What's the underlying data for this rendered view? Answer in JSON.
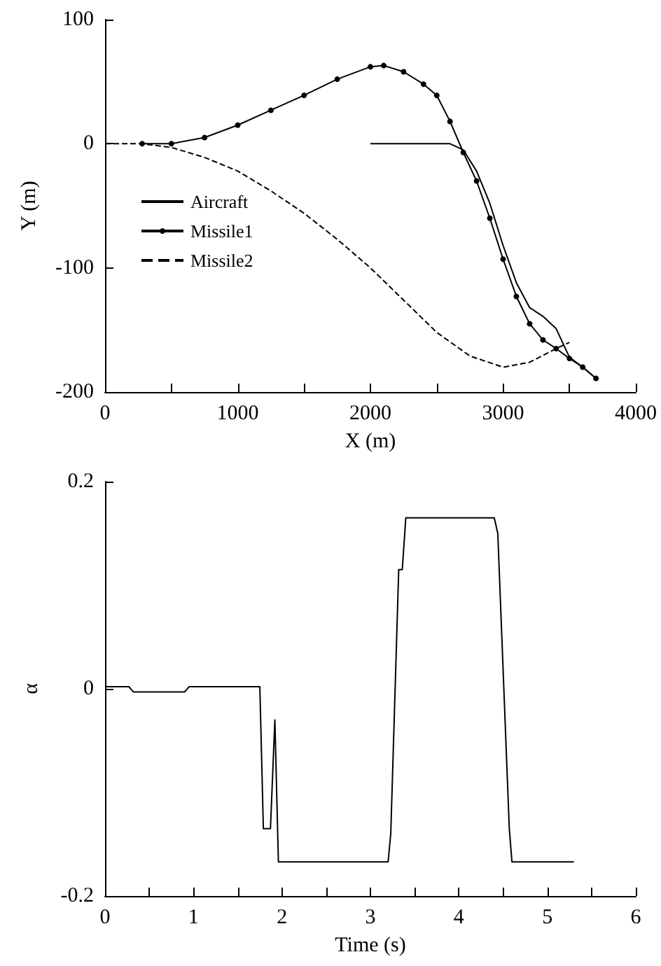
{
  "chart_data": [
    {
      "type": "line",
      "xlabel": "X (m)",
      "ylabel": "Y (m)",
      "xlim": [
        0,
        4000
      ],
      "ylim": [
        -200,
        100
      ],
      "xticks": [
        0,
        {
          "value": 500,
          "label": null
        },
        1000,
        {
          "value": 1500,
          "label": null
        },
        2000,
        {
          "value": 2500,
          "label": null
        },
        3000,
        {
          "value": 3500,
          "label": null
        },
        4000
      ],
      "yticks": [
        -200,
        -100,
        0,
        100
      ],
      "grid": false,
      "legend": "left",
      "series": [
        {
          "name": "Aircraft",
          "color": "#000000",
          "line_style": "solid",
          "marker": "none",
          "x": [
            2000,
            2300,
            2600,
            2700,
            2800,
            2900,
            3000,
            3100,
            3200,
            3300,
            3400,
            3500,
            3600,
            3700
          ],
          "values": [
            0,
            0,
            0,
            -5,
            -22,
            -48,
            -82,
            -112,
            -132,
            -139,
            -149,
            -172,
            -180,
            -189
          ]
        },
        {
          "name": "Missile1",
          "color": "#000000",
          "line_style": "solid",
          "marker": "circle",
          "x": [
            280,
            500,
            750,
            1000,
            1250,
            1500,
            1750,
            2000,
            2100,
            2250,
            2400,
            2500,
            2600,
            2700,
            2800,
            2900,
            3000,
            3100,
            3200,
            3300,
            3400,
            3500,
            3600,
            3700
          ],
          "values": [
            0,
            0,
            5,
            15,
            27,
            39,
            52,
            62,
            63,
            58,
            48,
            39,
            18,
            -7,
            -30,
            -60,
            -93,
            -123,
            -145,
            -158,
            -165,
            -173,
            -180,
            -189
          ]
        },
        {
          "name": "Missile2",
          "color": "#000000",
          "line_style": "dashed",
          "marker": "none",
          "x": [
            0,
            280,
            500,
            750,
            1000,
            1250,
            1500,
            1750,
            2000,
            2250,
            2500,
            2750,
            3000,
            3200,
            3400,
            3500
          ],
          "values": [
            0,
            0,
            -3,
            -11,
            -22,
            -38,
            -56,
            -77,
            -100,
            -126,
            -152,
            -171,
            -180,
            -176,
            -165,
            -160
          ]
        }
      ]
    },
    {
      "type": "line",
      "xlabel": "Time (s)",
      "ylabel": "α",
      "xlim": [
        0,
        6
      ],
      "ylim": [
        -0.2,
        0.2
      ],
      "xticks": [
        0,
        {
          "value": 0.5,
          "label": null
        },
        1,
        {
          "value": 1.5,
          "label": null
        },
        2,
        {
          "value": 2.5,
          "label": null
        },
        3,
        {
          "value": 3.5,
          "label": null
        },
        4,
        {
          "value": 4.5,
          "label": null
        },
        5,
        {
          "value": 5.5,
          "label": null
        },
        6
      ],
      "yticks": [
        -0.2,
        0,
        0.2
      ],
      "grid": false,
      "legend": false,
      "series": [
        {
          "color": "#000000",
          "line_style": "solid",
          "marker": "none",
          "x": [
            0,
            0.27,
            0.32,
            0.9,
            0.95,
            1.75,
            1.79,
            1.87,
            1.92,
            1.96,
            3.2,
            3.23,
            3.32,
            3.36,
            3.4,
            4.4,
            4.44,
            4.57,
            4.6,
            5.3
          ],
          "values": [
            0.002,
            0.002,
            -0.003,
            -0.003,
            0.002,
            0.002,
            -0.135,
            -0.135,
            -0.03,
            -0.167,
            -0.167,
            -0.14,
            0.115,
            0.115,
            0.165,
            0.165,
            0.15,
            -0.135,
            -0.167,
            -0.167
          ]
        }
      ]
    }
  ]
}
